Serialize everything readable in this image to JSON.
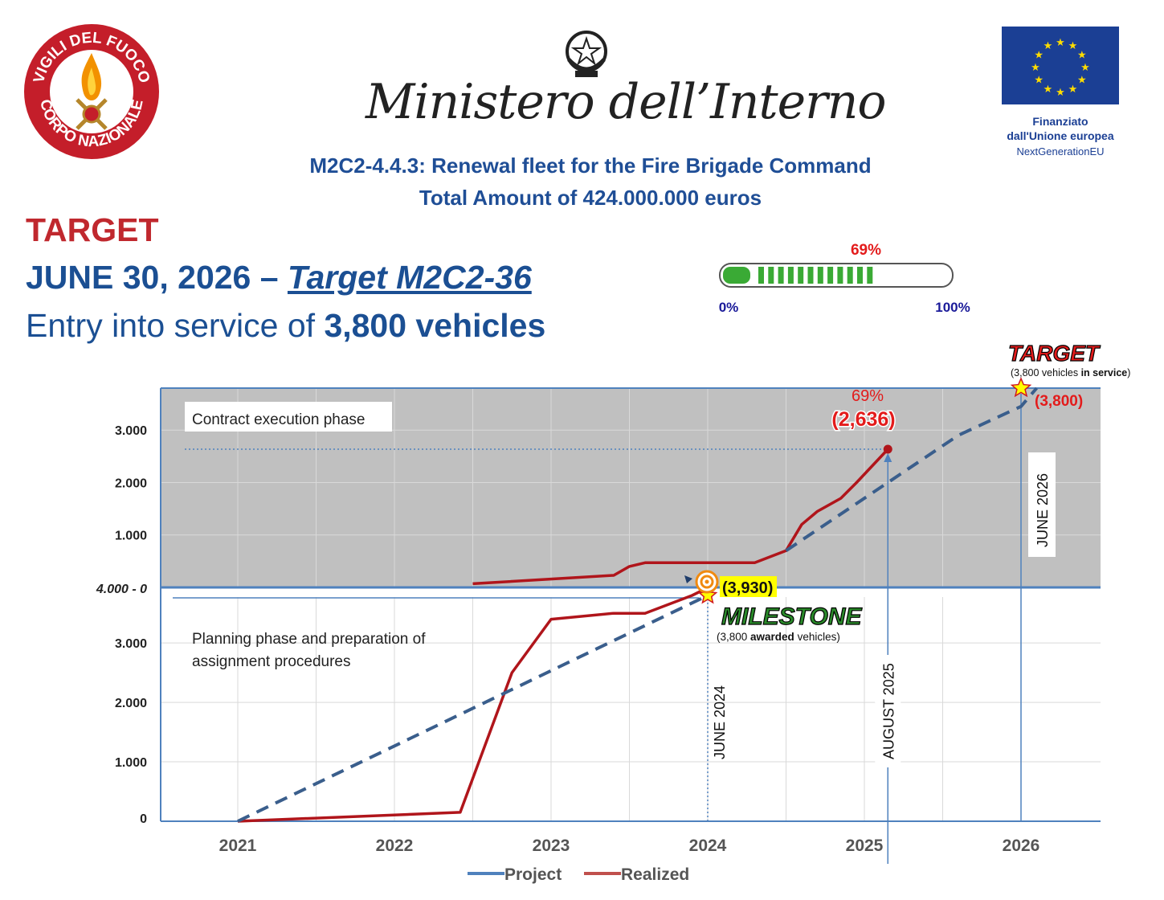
{
  "header": {
    "left_logo": "vigili-del-fuoco-logo",
    "left_logo_text_top": "VIGILI DEL FUOCO",
    "left_logo_text_bottom": "CORPO NAZIONALE",
    "ministry": "Ministero dell’Interno",
    "eu_line1": "Finanziato",
    "eu_line2": "dall'Unione europea",
    "eu_line3": "NextGenerationEU",
    "subtitle_line1": "M2C2-4.4.3: Renewal fleet for the Fire Brigade Command",
    "subtitle_line2": "Total Amount of 424.000.000 euros"
  },
  "target": {
    "label": "TARGET",
    "date": "JUNE 30, 2026",
    "dash": " – ",
    "code": "Target M2C2-36",
    "entry_prefix": "Entry into service of ",
    "entry_bold": "3,800 vehicles"
  },
  "progress": {
    "value_label": "69%",
    "fraction": 0.69,
    "min_label": "0%",
    "max_label": "100%"
  },
  "chart_data": {
    "type": "line",
    "x_ticks": [
      "2021",
      "2022",
      "2023",
      "2024",
      "2025",
      "2026"
    ],
    "xlim": [
      2020.5,
      2026.5
    ],
    "colors": {
      "project": "#3a5e8c",
      "realized": "#b0151b",
      "upper_bg": "#c0c0c0",
      "axis": "#4f81bd",
      "highlight": "#ffff00",
      "milestone_text": "#2a8a2a"
    },
    "upper_panel": {
      "ylim": [
        0,
        3800
      ],
      "y_ticks": [
        {
          "label": "3.000",
          "value": 3000
        },
        {
          "label": "2.000",
          "value": 2000
        },
        {
          "label": "1.000",
          "value": 1000
        }
      ],
      "phase_label": "Contract execution phase",
      "series": [
        {
          "name": "Realized",
          "points": [
            [
              2022.5,
              70
            ],
            [
              2023.4,
              230
            ],
            [
              2023.5,
              400
            ],
            [
              2023.6,
              470
            ],
            [
              2024.3,
              470
            ],
            [
              2024.5,
              700
            ],
            [
              2024.6,
              1200
            ],
            [
              2024.7,
              1450
            ],
            [
              2024.85,
              1700
            ],
            [
              2024.95,
              2000
            ],
            [
              2025.15,
              2636
            ]
          ]
        },
        {
          "name": "Project",
          "points": [
            [
              2024.5,
              700
            ],
            [
              2025.0,
              1700
            ],
            [
              2025.6,
              2900
            ],
            [
              2026.0,
              3450
            ],
            [
              2026.1,
              3800
            ]
          ]
        }
      ]
    },
    "lower_panel": {
      "ylim": [
        0,
        3800
      ],
      "y_ticks": [
        {
          "label": "3.000",
          "value": 3000
        },
        {
          "label": "2.000",
          "value": 2000
        },
        {
          "label": "1.000",
          "value": 1000
        },
        {
          "label": "0",
          "value": 0
        }
      ],
      "phase_label_line1": "Planning phase and preparation of",
      "phase_label_line2": "assignment procedures",
      "series": [
        {
          "name": "Realized",
          "points": [
            [
              2021.0,
              0
            ],
            [
              2022.42,
              150
            ],
            [
              2022.75,
              2500
            ],
            [
              2023.0,
              3400
            ],
            [
              2023.4,
              3500
            ],
            [
              2023.6,
              3500
            ],
            [
              2023.9,
              3800
            ],
            [
              2024.0,
              3930
            ]
          ]
        },
        {
          "name": "Project",
          "points": [
            [
              2021.0,
              0
            ],
            [
              2024.0,
              3800
            ]
          ]
        }
      ]
    },
    "boundary_label": "4.000 - 0",
    "milestone": {
      "value_label": "(3,930)",
      "title": "MILESTONE",
      "caption_pre": "(3,800 ",
      "caption_bold": "awarded",
      "caption_post": " vehicles)",
      "x": 2024.0,
      "date_label": "JUNE 2024"
    },
    "current": {
      "percent_label": "69%",
      "value_label": "(2,636)",
      "x": 2025.15,
      "value": 2636,
      "date_label": "AUGUST 2025"
    },
    "final_target": {
      "title": "TARGET",
      "caption_pre": "(3,800 vehicles ",
      "caption_bold": "in service",
      "caption_post": ")",
      "value_label": "(3,800)",
      "x": 2026.0,
      "value": 3800,
      "date_label": "JUNE 2026"
    },
    "legend": [
      {
        "name": "Project",
        "color": "#4f81bd"
      },
      {
        "name": "Realized",
        "color": "#c0504d"
      }
    ]
  }
}
